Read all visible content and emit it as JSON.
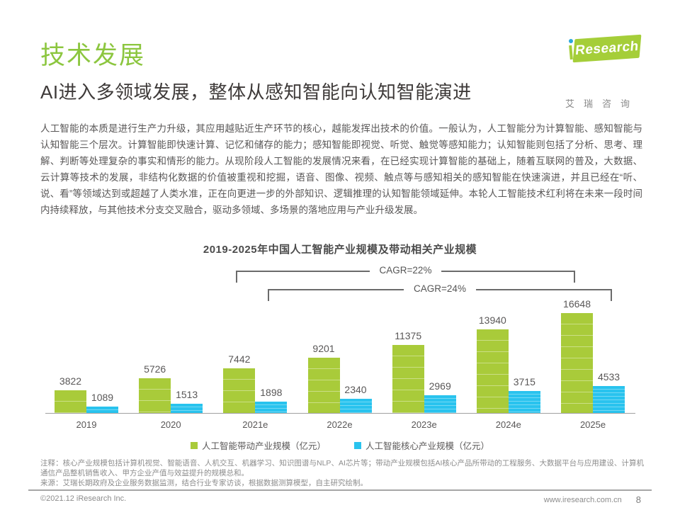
{
  "header": {
    "section_title": "技术发展",
    "page_title": "AI进入多领域发展，整体从感知智能向认知智能演进"
  },
  "logo": {
    "brand_i": "i",
    "brand_rest": "Research",
    "cn": "艾瑞咨询"
  },
  "intro": {
    "text": "人工智能的本质是进行生产力升级，其应用越贴近生产环节的核心，越能发挥出技术的价值。一般认为，人工智能分为计算智能、感知智能与认知智能三个层次。计算智能即快速计算、记忆和储存的能力；感知智能即视觉、听觉、触觉等感知能力；认知智能则包括了分析、思考、理解、判断等处理复杂的事实和情形的能力。从现阶段人工智能的发展情况来看，在已经实现计算智能的基础上，随着互联网的普及，大数据、云计算等技术的发展，非结构化数据的价值被重视和挖掘，语音、图像、视频、触点等与感知相关的感知智能在快速演进，并且已经在“听、说、看”等领域达到或超越了人类水准，正在向更进一步的外部知识、逻辑推理的认知智能领域延伸。本轮人工智能技术红利将在未来一段时间内持续释放，与其他技术分支交叉融合，驱动多领域、多场景的落地应用与产业升级发展。"
  },
  "chart_data": {
    "type": "bar",
    "title": "2019-2025年中国人工智能产业规模及带动相关产业规模",
    "categories": [
      "2019",
      "2020",
      "2021e",
      "2022e",
      "2023e",
      "2024e",
      "2025e"
    ],
    "series": [
      {
        "name": "人工智能带动产业规模（亿元）",
        "color": "#a9cb3a",
        "values": [
          3822,
          5726,
          7442,
          9201,
          11375,
          13940,
          16648
        ]
      },
      {
        "name": "人工智能核心产业规模（亿元）",
        "color": "#29c3ee",
        "values": [
          1089,
          1513,
          1898,
          2340,
          2969,
          3715,
          4533
        ]
      }
    ],
    "annotations": [
      {
        "label": "CAGR=22%",
        "series": 0,
        "from": "2021e",
        "to": "2025e"
      },
      {
        "label": "CAGR=24%",
        "series": 1,
        "from": "2021e",
        "to": "2025e"
      }
    ],
    "ylim": [
      0,
      18000
    ],
    "grid": false,
    "legend_position": "bottom",
    "data_labels": true
  },
  "notes": {
    "note": "注释：核心产业规模包括计算机视觉、智能语音、人机交互、机器学习、知识图谱与NLP、AI芯片等；带动产业规模包括AI核心产品所带动的工程服务、大数据平台与应用建设、计算机通信产品整机销售收入、甲方企业产值与效益提升的规模总和。",
    "source": "来源：艾瑞长期政府及企业服务数据监测，结合行业专家访谈，根据数据测算模型，自主研究绘制。"
  },
  "footer": {
    "copyright": "©2021.12 iResearch Inc.",
    "website": "www.iresearch.com.cn",
    "page_number": "8"
  },
  "colors": {
    "brand_green": "#8cc63f",
    "bar_green": "#a9cb3a",
    "bar_blue": "#29c3ee",
    "logo_green": "#a5ce39",
    "logo_dot_blue": "#2aa8dd"
  }
}
